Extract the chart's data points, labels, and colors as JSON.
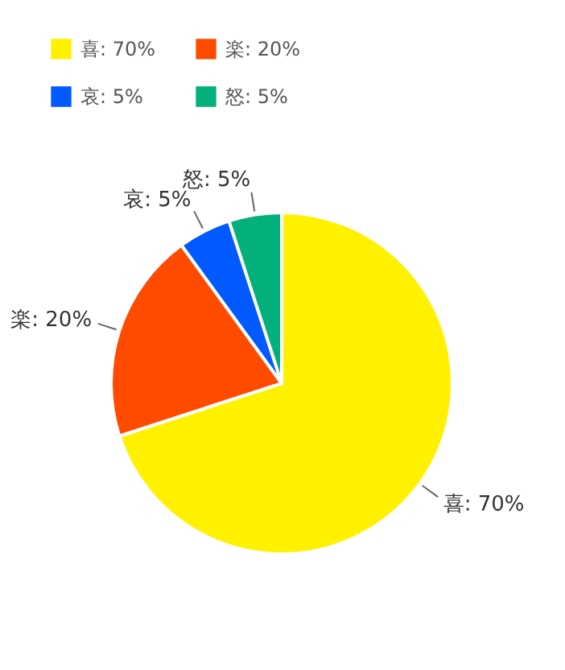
{
  "chart_data": {
    "type": "pie",
    "categories": [
      "喜",
      "楽",
      "哀",
      "怒"
    ],
    "values": [
      70,
      20,
      5,
      5
    ],
    "value_labels": [
      "70%",
      "20%",
      "5%",
      "5%"
    ],
    "colors": [
      "#fff100",
      "#ff4b00",
      "#005aff",
      "#03af7a"
    ],
    "legend": "top left"
  }
}
